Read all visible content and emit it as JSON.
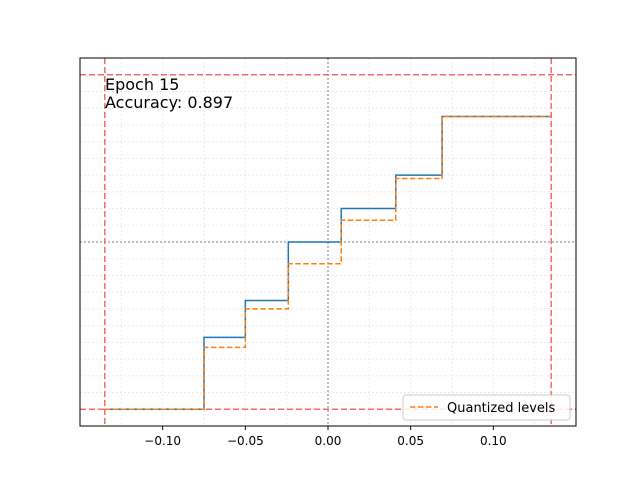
{
  "chart_data": {
    "type": "line",
    "annotations": [
      "Epoch 15",
      "Accuracy: 0.897"
    ],
    "xlim": [
      -0.15,
      0.15
    ],
    "ylim": [
      -1.1,
      1.1
    ],
    "x_ticks": [
      -0.1,
      -0.05,
      0.0,
      0.05,
      0.1
    ],
    "x_tick_labels": [
      "−0.10",
      "−0.05",
      "0.00",
      "0.05",
      "0.10"
    ],
    "y_tick_labels_shown": false,
    "grid": true,
    "legend_position": "lower-right",
    "reference_lines": {
      "vertical_dashed_red": [
        -0.135,
        0.135
      ],
      "horizontal_dashed_red": [
        -1.0,
        1.0
      ],
      "vertical_dotted_gray": [
        0.0
      ],
      "horizontal_dotted_gray": [
        0.0
      ]
    },
    "series": [
      {
        "name": "",
        "style": "solid",
        "color": "#1f77b4",
        "x": [
          -0.135,
          -0.075,
          -0.075,
          -0.05,
          -0.05,
          -0.024,
          -0.024,
          0.008,
          0.008,
          0.041,
          0.041,
          0.069,
          0.069,
          0.135
        ],
        "y": [
          -1.0,
          -1.0,
          -0.57,
          -0.57,
          -0.35,
          -0.35,
          0.0,
          0.0,
          0.2,
          0.2,
          0.4,
          0.4,
          0.75,
          0.75
        ]
      },
      {
        "name": "Quantized levels",
        "style": "dashed",
        "color": "#ff7f0e",
        "x": [
          -0.135,
          -0.075,
          -0.075,
          -0.05,
          -0.05,
          -0.024,
          -0.024,
          0.008,
          0.008,
          0.041,
          0.041,
          0.069,
          0.069,
          0.135
        ],
        "y": [
          -1.0,
          -1.0,
          -0.63,
          -0.63,
          -0.4,
          -0.4,
          -0.13,
          -0.13,
          0.13,
          0.13,
          0.38,
          0.38,
          0.75,
          0.75
        ]
      }
    ]
  },
  "colors": {
    "reference_red": "#f46a6a",
    "zero_gray": "#999999",
    "grid": "#e6e6e6",
    "axes": "#000000"
  }
}
